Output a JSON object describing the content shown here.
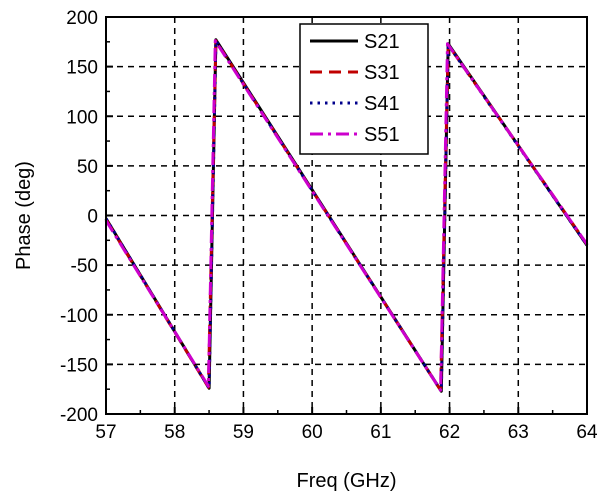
{
  "chart_data": {
    "type": "line",
    "xlabel": "Freq (GHz)",
    "ylabel": "Phase (deg)",
    "xlim": [
      57,
      64
    ],
    "ylim": [
      -200,
      200
    ],
    "x_ticks": [
      57,
      58,
      59,
      60,
      61,
      62,
      63,
      64
    ],
    "y_ticks": [
      -200,
      -150,
      -100,
      -50,
      0,
      50,
      100,
      150,
      200
    ],
    "grid": true,
    "legend_position": "top-center",
    "series": [
      {
        "name": "S21",
        "color": "#000000",
        "dash": "solid",
        "x": [
          57,
          58.5,
          58.6,
          61.88,
          61.98,
          64
        ],
        "y": [
          -3,
          -174,
          177,
          -177,
          173,
          -30
        ]
      },
      {
        "name": "S31",
        "color": "#c00000",
        "dash": "dash",
        "x": [
          57,
          58.49,
          58.6,
          61.87,
          61.98,
          64
        ],
        "y": [
          -4,
          -173,
          176,
          -176,
          172,
          -29
        ]
      },
      {
        "name": "S41",
        "color": "#00008b",
        "dash": "dot",
        "x": [
          57,
          58.5,
          58.6,
          61.88,
          61.98,
          64
        ],
        "y": [
          -3,
          -174,
          176,
          -177,
          172,
          -30
        ]
      },
      {
        "name": "S51",
        "color": "#cc00cc",
        "dash": "dashdot",
        "x": [
          57,
          58.49,
          58.59,
          61.87,
          61.97,
          64
        ],
        "y": [
          -5,
          -172,
          176,
          -176,
          173,
          -29
        ]
      }
    ]
  }
}
